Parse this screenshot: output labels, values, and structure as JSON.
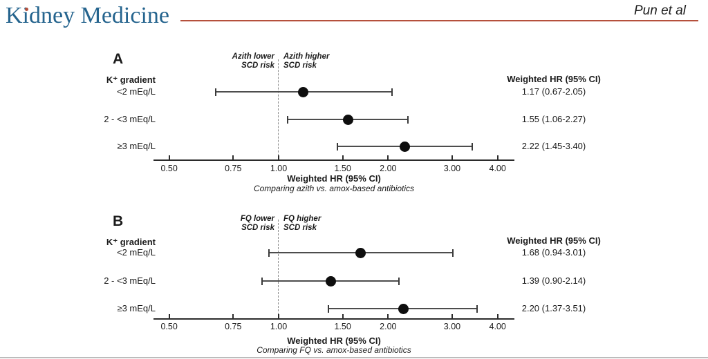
{
  "header": {
    "journal_logo": "Kidney Medicine",
    "attribution": "Pun et al",
    "brand_blue": "#25648e",
    "accent_red": "#b5503c"
  },
  "chart_data": [
    {
      "type": "scatter",
      "subtype": "forest-plot",
      "panel_label": "A",
      "group_header": "K⁺ gradient",
      "column_header": "Weighted HR (95% CI)",
      "direction_labels": {
        "lower": [
          "Azith lower",
          "SCD risk"
        ],
        "higher": [
          "Azith higher",
          "SCD risk"
        ]
      },
      "rows": [
        {
          "label": "<2 mEq/L",
          "hr": 1.17,
          "ci_low": 0.67,
          "ci_high": 2.05,
          "hr_text": "1.17 (0.67-2.05)"
        },
        {
          "label": "2 - <3 mEq/L",
          "hr": 1.55,
          "ci_low": 1.06,
          "ci_high": 2.27,
          "hr_text": "1.55 (1.06-2.27)"
        },
        {
          "label": "≥3 mEq/L",
          "hr": 2.22,
          "ci_low": 1.45,
          "ci_high": 3.4,
          "hr_text": "2.22 (1.45-3.40)"
        }
      ],
      "axis": {
        "scale": "log",
        "range": [
          0.45,
          4.5
        ],
        "reference_line": 1.0,
        "ticks": [
          0.5,
          0.75,
          1.0,
          1.5,
          2.0,
          3.0,
          4.0
        ],
        "tick_labels": [
          "0.50",
          "0.75",
          "1.00",
          "1.50",
          "2.00",
          "3.00",
          "4.00"
        ],
        "title": "Weighted HR (95% CI)",
        "subtitle": "Comparing azith vs. amox-based antibiotics"
      }
    },
    {
      "type": "scatter",
      "subtype": "forest-plot",
      "panel_label": "B",
      "group_header": "K⁺ gradient",
      "column_header": "Weighted HR (95% CI)",
      "direction_labels": {
        "lower": [
          "FQ lower",
          "SCD risk"
        ],
        "higher": [
          "FQ higher",
          "SCD risk"
        ]
      },
      "rows": [
        {
          "label": "<2 mEq/L",
          "hr": 1.68,
          "ci_low": 0.94,
          "ci_high": 3.01,
          "hr_text": "1.68 (0.94-3.01)"
        },
        {
          "label": "2 - <3 mEq/L",
          "hr": 1.39,
          "ci_low": 0.9,
          "ci_high": 2.14,
          "hr_text": "1.39 (0.90-2.14)"
        },
        {
          "label": "≥3 mEq/L",
          "hr": 2.2,
          "ci_low": 1.37,
          "ci_high": 3.51,
          "hr_text": "2.20 (1.37-3.51)"
        }
      ],
      "axis": {
        "scale": "log",
        "range": [
          0.45,
          4.5
        ],
        "reference_line": 1.0,
        "ticks": [
          0.5,
          0.75,
          1.0,
          1.5,
          2.0,
          3.0,
          4.0
        ],
        "tick_labels": [
          "0.50",
          "0.75",
          "1.00",
          "1.50",
          "2.00",
          "3.00",
          "4.00"
        ],
        "title": "Weighted HR (95% CI)",
        "subtitle": "Comparing FQ vs. amox-based antibiotics"
      }
    }
  ]
}
